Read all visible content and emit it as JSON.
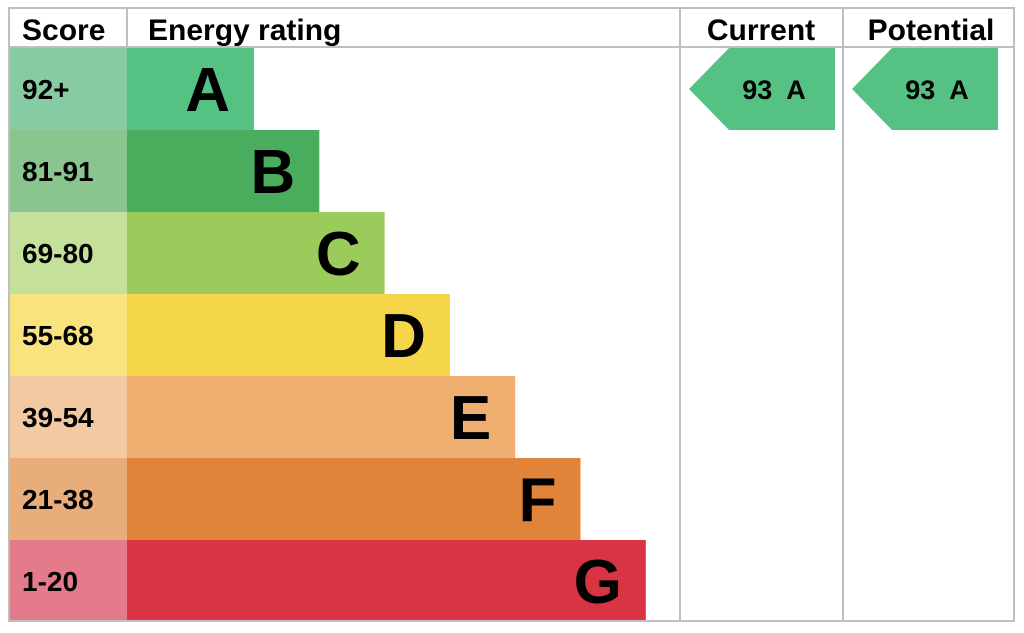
{
  "chart_data": {
    "type": "table",
    "columns": {
      "score": "Score",
      "rating": "Energy rating",
      "current": "Current",
      "potential": "Potential"
    },
    "bands": [
      {
        "letter": "A",
        "score": "92+",
        "color": "#55c283",
        "score_color": "#86cba2"
      },
      {
        "letter": "B",
        "score": "81-91",
        "color": "#4aac5d",
        "score_color": "#8ac58f"
      },
      {
        "letter": "C",
        "score": "69-80",
        "color": "#9acb5b",
        "score_color": "#c4e09b"
      },
      {
        "letter": "D",
        "score": "55-68",
        "color": "#f5d64a",
        "score_color": "#f8e37f"
      },
      {
        "letter": "E",
        "score": "39-54",
        "color": "#efaf70",
        "score_color": "#f3c9a2"
      },
      {
        "letter": "F",
        "score": "21-38",
        "color": "#e08439",
        "score_color": "#e8ad7a"
      },
      {
        "letter": "G",
        "score": "1-20",
        "color": "#d83443",
        "score_color": "#e47b8a"
      }
    ],
    "current": {
      "value": 93,
      "letter": "A",
      "text": "93  A",
      "color": "#55c283"
    },
    "potential": {
      "value": 93,
      "letter": "A",
      "text": "93  A",
      "color": "#55c283"
    }
  }
}
